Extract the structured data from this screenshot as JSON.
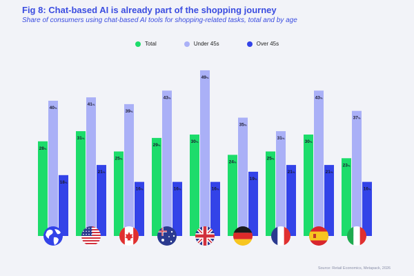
{
  "title": "Fig 8: Chat-based AI is already part of the shopping journey",
  "subtitle": "Share of consumers using chat-based AI tools for shopping-related tasks, total and by age",
  "source": "Source: Retail Economics, Metapack, 2026",
  "colors": {
    "total": "#1ddc6b",
    "under45": "#aab0f7",
    "over45": "#3343e8"
  },
  "chart_data": {
    "type": "bar",
    "title": "Fig 8: Chat-based AI is already part of the shopping journey",
    "subtitle": "Share of consumers using chat-based AI tools for shopping-related tasks, total and by age",
    "xlabel": "",
    "ylabel": "",
    "ylim": [
      0,
      50
    ],
    "value_suffix": "%",
    "categories": [
      "Global",
      "United States",
      "Canada",
      "Australia",
      "United Kingdom",
      "Germany",
      "France",
      "Spain",
      "Italy"
    ],
    "category_icons": [
      "globe-icon",
      "flag-us-icon",
      "flag-canada-icon",
      "flag-australia-icon",
      "flag-uk-icon",
      "flag-germany-icon",
      "flag-france-icon",
      "flag-spain-icon",
      "flag-italy-icon"
    ],
    "legend_position": "top-center",
    "series": [
      {
        "name": "Total",
        "values": [
          28,
          31,
          25,
          29,
          30,
          24,
          25,
          30,
          23
        ]
      },
      {
        "name": "Under 45s",
        "values": [
          40,
          41,
          39,
          43,
          49,
          35,
          31,
          43,
          37
        ]
      },
      {
        "name": "Over 45s",
        "values": [
          18,
          21,
          16,
          16,
          16,
          19,
          21,
          21,
          16
        ]
      }
    ]
  }
}
